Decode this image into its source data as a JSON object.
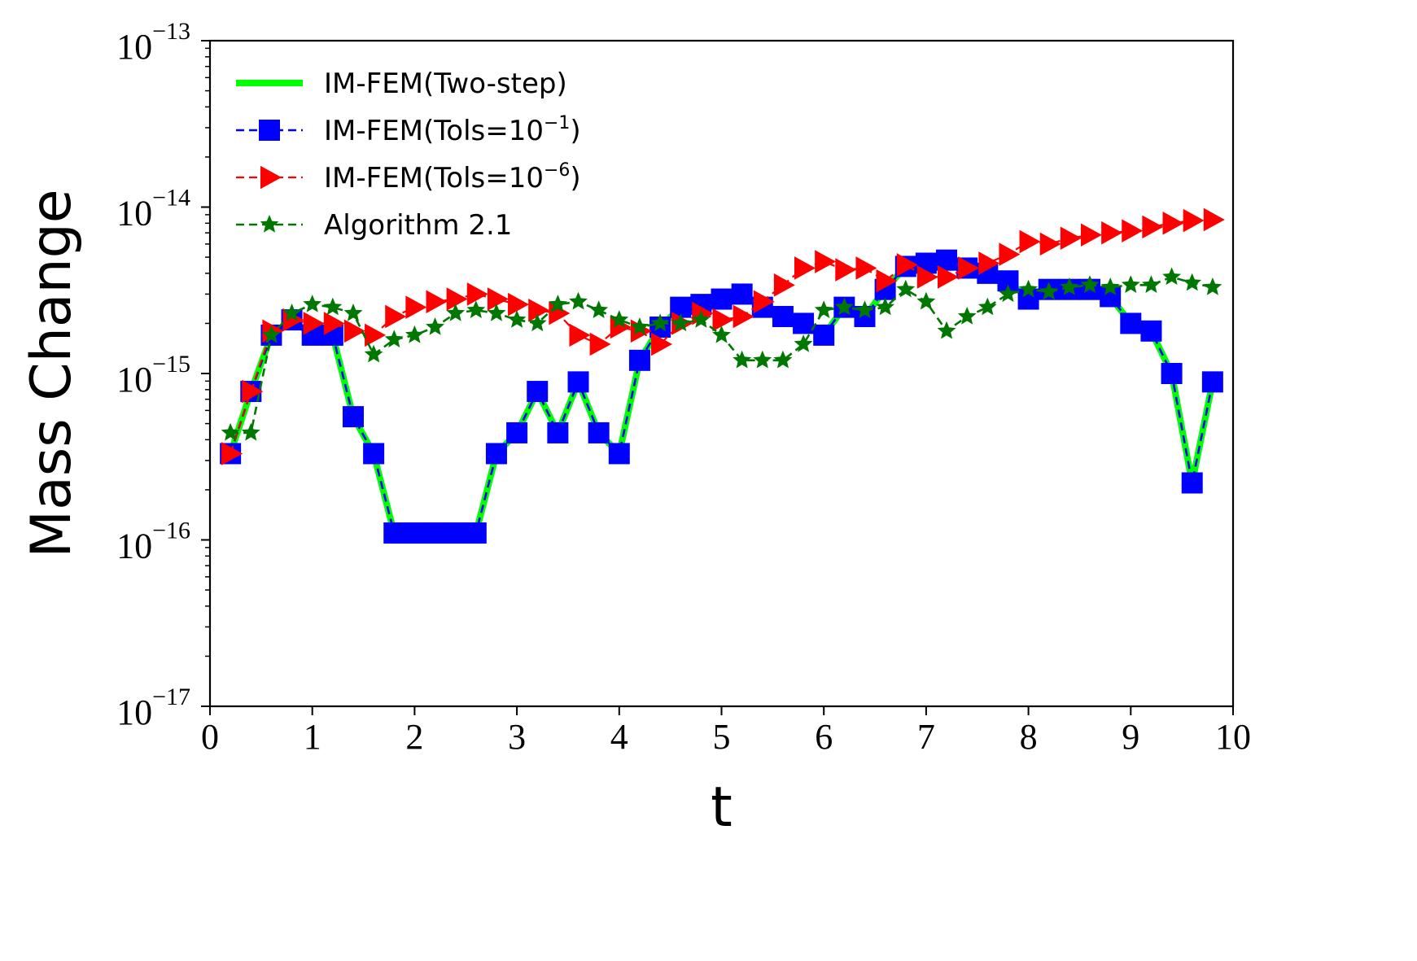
{
  "chart_data": {
    "type": "line",
    "xlabel": "t",
    "ylabel": "Mass Change",
    "xlim": [
      0,
      10
    ],
    "ylim": [
      1e-17,
      1e-13
    ],
    "yscale": "log",
    "grid": false,
    "legend_position": "top-left",
    "x_ticks": [
      "0",
      "1",
      "2",
      "3",
      "4",
      "5",
      "6",
      "7",
      "8",
      "9",
      "10"
    ],
    "y_ticks": [
      {
        "base": "10",
        "exp": "−17",
        "value": 1e-17
      },
      {
        "base": "10",
        "exp": "−16",
        "value": 1e-16
      },
      {
        "base": "10",
        "exp": "−15",
        "value": 1e-15
      },
      {
        "base": "10",
        "exp": "−14",
        "value": 1e-14
      },
      {
        "base": "10",
        "exp": "−13",
        "value": 1e-13
      }
    ],
    "x": [
      0.2,
      0.4,
      0.6,
      0.8,
      1.0,
      1.2,
      1.4,
      1.6,
      1.8,
      2.0,
      2.2,
      2.4,
      2.6,
      2.8,
      3.0,
      3.2,
      3.4,
      3.6,
      3.8,
      4.0,
      4.2,
      4.4,
      4.6,
      4.8,
      5.0,
      5.2,
      5.4,
      5.6,
      5.8,
      6.0,
      6.2,
      6.4,
      6.6,
      6.8,
      7.0,
      7.2,
      7.4,
      7.6,
      7.8,
      8.0,
      8.2,
      8.4,
      8.6,
      8.8,
      9.0,
      9.2,
      9.4,
      9.6,
      9.8
    ],
    "series": [
      {
        "name": "IM-FEM(Two-step)",
        "color": "#00ff00",
        "style": "solid",
        "marker": "none",
        "values": [
          3.3e-16,
          7.8e-16,
          1.7e-15,
          2.1e-15,
          1.7e-15,
          1.7e-15,
          5.5e-16,
          3.3e-16,
          1.1e-16,
          1.1e-16,
          1.1e-16,
          1.1e-16,
          1.1e-16,
          3.3e-16,
          4.4e-16,
          7.8e-16,
          4.4e-16,
          8.9e-16,
          4.4e-16,
          3.3e-16,
          1.2e-15,
          1.9e-15,
          2.5e-15,
          2.6e-15,
          2.8e-15,
          3e-15,
          2.5e-15,
          2.2e-15,
          2e-15,
          1.7e-15,
          2.5e-15,
          2.2e-15,
          3.2e-15,
          4.4e-15,
          4.6e-15,
          4.8e-15,
          4.3e-15,
          4e-15,
          3.6e-15,
          2.8e-15,
          3.2e-15,
          3.2e-15,
          3.2e-15,
          2.9e-15,
          2e-15,
          1.8e-15,
          1e-15,
          2.2e-16,
          8.9e-16
        ]
      },
      {
        "name": "IM-FEM(Tols=10",
        "name_exp": "−1",
        "name_suffix": ")",
        "color": "#0000ff",
        "style": "dashed",
        "marker": "square",
        "values": [
          3.3e-16,
          7.8e-16,
          1.7e-15,
          2.1e-15,
          1.7e-15,
          1.7e-15,
          5.5e-16,
          3.3e-16,
          1.1e-16,
          1.1e-16,
          1.1e-16,
          1.1e-16,
          1.1e-16,
          3.3e-16,
          4.4e-16,
          7.8e-16,
          4.4e-16,
          8.9e-16,
          4.4e-16,
          3.3e-16,
          1.2e-15,
          1.9e-15,
          2.5e-15,
          2.6e-15,
          2.8e-15,
          3e-15,
          2.5e-15,
          2.2e-15,
          2e-15,
          1.7e-15,
          2.5e-15,
          2.2e-15,
          3.2e-15,
          4.4e-15,
          4.6e-15,
          4.8e-15,
          4.3e-15,
          4e-15,
          3.6e-15,
          2.8e-15,
          3.2e-15,
          3.2e-15,
          3.2e-15,
          2.9e-15,
          2e-15,
          1.8e-15,
          1e-15,
          2.2e-16,
          8.9e-16
        ]
      },
      {
        "name": "IM-FEM(Tols=10",
        "name_exp": "−6",
        "name_suffix": ")",
        "color": "#ff0000",
        "style": "dashed",
        "marker": "triangle-right",
        "values": [
          3.3e-16,
          7.8e-16,
          1.8e-15,
          2.1e-15,
          2e-15,
          2e-15,
          1.8e-15,
          1.7e-15,
          2.2e-15,
          2.5e-15,
          2.7e-15,
          2.8e-15,
          3e-15,
          2.8e-15,
          2.6e-15,
          2.4e-15,
          2.3e-15,
          1.7e-15,
          1.5e-15,
          1.9e-15,
          1.8e-15,
          1.5e-15,
          2e-15,
          2.3e-15,
          2.1e-15,
          2.2e-15,
          2.7e-15,
          3.4e-15,
          4.3e-15,
          4.7e-15,
          4.2e-15,
          4.3e-15,
          3.6e-15,
          4.5e-15,
          3.8e-15,
          3.8e-15,
          4.3e-15,
          4.6e-15,
          5.2e-15,
          6.2e-15,
          6e-15,
          6.5e-15,
          6.8e-15,
          7e-15,
          7.2e-15,
          7.6e-15,
          8e-15,
          8.3e-15,
          8.4e-15
        ]
      },
      {
        "name": "Algorithm 2.1",
        "color": "#007700",
        "style": "dashed",
        "marker": "star",
        "values": [
          4.4e-16,
          4.4e-16,
          1.7e-15,
          2.3e-15,
          2.6e-15,
          2.5e-15,
          2.3e-15,
          1.3e-15,
          1.6e-15,
          1.7e-15,
          1.9e-15,
          2.3e-15,
          2.4e-15,
          2.3e-15,
          2.1e-15,
          2e-15,
          2.6e-15,
          2.7e-15,
          2.4e-15,
          2.1e-15,
          1.9e-15,
          2e-15,
          2e-15,
          2.1e-15,
          1.7e-15,
          1.2e-15,
          1.2e-15,
          1.2e-15,
          1.5e-15,
          2.4e-15,
          2.5e-15,
          2.4e-15,
          2.5e-15,
          3.2e-15,
          2.7e-15,
          1.8e-15,
          2.2e-15,
          2.5e-15,
          3e-15,
          3.2e-15,
          3.1e-15,
          3.3e-15,
          3.4e-15,
          3.3e-15,
          3.4e-15,
          3.4e-15,
          3.8e-15,
          3.5e-15,
          3.3e-15
        ]
      }
    ]
  }
}
